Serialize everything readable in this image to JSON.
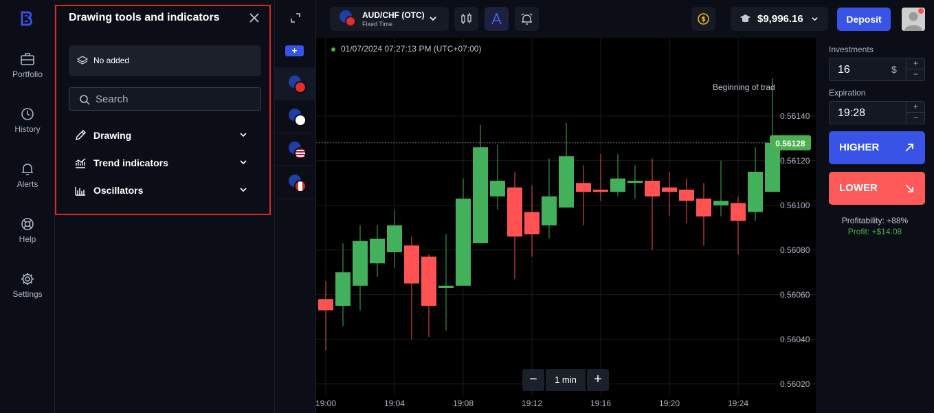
{
  "nav": {
    "items": [
      {
        "label": "Portfolio",
        "icon": "briefcase-icon"
      },
      {
        "label": "History",
        "icon": "clock-icon"
      },
      {
        "label": "Alerts",
        "icon": "bell-icon"
      },
      {
        "label": "Help",
        "icon": "lifebuoy-icon"
      },
      {
        "label": "Settings",
        "icon": "gear-icon"
      }
    ]
  },
  "panel": {
    "title": "Drawing tools and indicators",
    "no_added": "No added",
    "search_placeholder": "Search",
    "sections": [
      {
        "label": "Drawing",
        "icon": "pencil-icon"
      },
      {
        "label": "Trend indicators",
        "icon": "trend-chart-icon"
      },
      {
        "label": "Oscillators",
        "icon": "oscillator-icon"
      }
    ]
  },
  "topbar": {
    "pair_name": "AUD/CHF (OTC)",
    "pair_sub": "Fixed Time",
    "balance": "$9,996.16",
    "deposit_label": "Deposit"
  },
  "chart": {
    "timestamp": "01/07/2024  07:27:13 PM  (UTC+07:00)",
    "annotation": "Beginning of trad",
    "timeframe": "1 min",
    "current_price": "0.56128",
    "price_label_color": "#4caf50"
  },
  "chart_data": {
    "type": "candlestick",
    "y_ticks": [
      "0.56140",
      "0.56120",
      "0.56100",
      "0.56080",
      "0.56060",
      "0.56040",
      "0.56020"
    ],
    "x_ticks": [
      "19:00",
      "19:04",
      "19:08",
      "19:12",
      "19:16",
      "19:20",
      "19:24"
    ],
    "ylim": [
      0.56015,
      0.56175
    ],
    "up_color": "#43b05c",
    "down_color": "#ff5252",
    "candles": [
      {
        "t": 0,
        "o": 0.56058,
        "h": 0.56066,
        "l": 0.56035,
        "c": 0.56053
      },
      {
        "t": 1,
        "o": 0.56055,
        "h": 0.56083,
        "l": 0.56046,
        "c": 0.5607
      },
      {
        "t": 2,
        "o": 0.56064,
        "h": 0.56091,
        "l": 0.56053,
        "c": 0.56084
      },
      {
        "t": 3,
        "o": 0.56074,
        "h": 0.56091,
        "l": 0.56068,
        "c": 0.56085
      },
      {
        "t": 4,
        "o": 0.56079,
        "h": 0.56098,
        "l": 0.56072,
        "c": 0.56091
      },
      {
        "t": 5,
        "o": 0.56082,
        "h": 0.56086,
        "l": 0.5604,
        "c": 0.56065
      },
      {
        "t": 6,
        "o": 0.56077,
        "h": 0.56078,
        "l": 0.56041,
        "c": 0.56055
      },
      {
        "t": 7,
        "o": 0.56063,
        "h": 0.56087,
        "l": 0.56044,
        "c": 0.56064
      },
      {
        "t": 8,
        "o": 0.56064,
        "h": 0.56112,
        "l": 0.56064,
        "c": 0.56103
      },
      {
        "t": 9,
        "o": 0.56083,
        "h": 0.56136,
        "l": 0.56083,
        "c": 0.56126
      },
      {
        "t": 10,
        "o": 0.56104,
        "h": 0.56127,
        "l": 0.56098,
        "c": 0.56111
      },
      {
        "t": 11,
        "o": 0.56108,
        "h": 0.56115,
        "l": 0.56067,
        "c": 0.56086
      },
      {
        "t": 12,
        "o": 0.56097,
        "h": 0.56109,
        "l": 0.56077,
        "c": 0.56087
      },
      {
        "t": 13,
        "o": 0.56091,
        "h": 0.56121,
        "l": 0.56085,
        "c": 0.56104
      },
      {
        "t": 14,
        "o": 0.56099,
        "h": 0.56137,
        "l": 0.56099,
        "c": 0.56122
      },
      {
        "t": 15,
        "o": 0.5611,
        "h": 0.56118,
        "l": 0.56091,
        "c": 0.56106
      },
      {
        "t": 16,
        "o": 0.56107,
        "h": 0.56123,
        "l": 0.56102,
        "c": 0.56106
      },
      {
        "t": 17,
        "o": 0.56106,
        "h": 0.56123,
        "l": 0.56104,
        "c": 0.56112
      },
      {
        "t": 18,
        "o": 0.5611,
        "h": 0.56118,
        "l": 0.56103,
        "c": 0.56111
      },
      {
        "t": 19,
        "o": 0.56111,
        "h": 0.56121,
        "l": 0.5608,
        "c": 0.56104
      },
      {
        "t": 20,
        "o": 0.56108,
        "h": 0.56115,
        "l": 0.56095,
        "c": 0.56106
      },
      {
        "t": 21,
        "o": 0.56107,
        "h": 0.56112,
        "l": 0.56092,
        "c": 0.56102
      },
      {
        "t": 22,
        "o": 0.56103,
        "h": 0.5611,
        "l": 0.56082,
        "c": 0.56095
      },
      {
        "t": 23,
        "o": 0.561,
        "h": 0.5612,
        "l": 0.56095,
        "c": 0.56102
      },
      {
        "t": 24,
        "o": 0.56101,
        "h": 0.56104,
        "l": 0.56078,
        "c": 0.56093
      },
      {
        "t": 25,
        "o": 0.56097,
        "h": 0.56126,
        "l": 0.56093,
        "c": 0.56115
      },
      {
        "t": 26,
        "o": 0.56106,
        "h": 0.56157,
        "l": 0.56106,
        "c": 0.56128
      }
    ]
  },
  "right": {
    "investments_label": "Investments",
    "investment_value": "16",
    "investment_unit": "$",
    "expiration_label": "Expiration",
    "expiration_value": "19:28",
    "higher_label": "HIGHER",
    "lower_label": "LOWER",
    "profitability": "Profitability: +88%",
    "profit": "Profit: +$14.08",
    "plus": "+",
    "minus": "−"
  },
  "colors": {
    "accent": "#3853e6",
    "up": "#43b05c",
    "down": "#ff5a5a",
    "highlight_border": "#e02424"
  }
}
